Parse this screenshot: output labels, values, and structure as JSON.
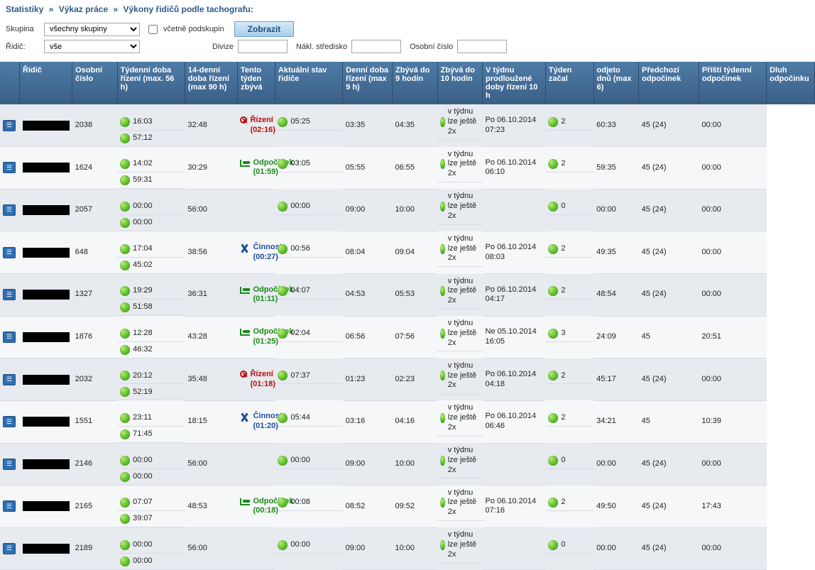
{
  "breadcrumb": [
    "Statistiky",
    "Výkaz práce",
    "Výkony řidičů podle tachografu:"
  ],
  "filters": {
    "group_label": "Skupina",
    "group_value": "všechny skupiny",
    "include_sub_label": "včetně podskupin",
    "show_label": "Zobrazit",
    "driver_label": "Řidič:",
    "driver_value": "vše",
    "division_label": "Divize",
    "division_value": "",
    "costcenter_label": "Nákl. středisko",
    "costcenter_value": "",
    "personal_label": "Osobní číslo",
    "personal_value": ""
  },
  "columns": [
    "",
    "Řidič",
    "Osobní číslo",
    "Týdenní doba řízení (max. 56 h)",
    "14-denní doba řízení (max 90 h)",
    "Tento týden zbývá",
    "Aktuální stav řidiče",
    "Denní doba řízení (max 9 h)",
    "Zbývá do 9 hodin",
    "Zbývá do 10 hodin",
    "V týdnu prodloužené doby řízení 10 h",
    "Týden začal",
    "odjeto dnů (max 6)",
    "Předchozí odpočinek",
    "Příští týdenní odpočinek",
    "Dluh odpočinku"
  ],
  "state_types": {
    "rizeni": {
      "label": "Řízení",
      "css": "state-red",
      "icon": "icon-red-x"
    },
    "odpocinek": {
      "label": "Odpočinek",
      "css": "state-green",
      "icon": "icon-bed"
    },
    "cinnost": {
      "label": "Činnost",
      "css": "state-blue",
      "icon": "icon-tools"
    }
  },
  "ext_label": "v týdnu lze ještě 2x",
  "rows": [
    {
      "num": "2038",
      "week": "16:03",
      "d14": "57:12",
      "remain": "32:48",
      "state": "rizeni",
      "state_time": "(02:16)",
      "daily": "05:25",
      "r9": "03:35",
      "r10": "04:35",
      "start": "Po 06.10.2014 07:23",
      "days": "2",
      "prev": "60:33",
      "next": "45 (24)",
      "debt": "00:00"
    },
    {
      "num": "1624",
      "week": "14:02",
      "d14": "59:31",
      "remain": "30:29",
      "state": "odpocinek",
      "state_time": "(01:59)",
      "daily": "03:05",
      "r9": "05:55",
      "r10": "06:55",
      "start": "Po 06.10.2014 06:10",
      "days": "2",
      "prev": "59:35",
      "next": "45 (24)",
      "debt": "00:00"
    },
    {
      "num": "2057",
      "week": "00:00",
      "d14": "00:00",
      "remain": "56:00",
      "state": "",
      "state_time": "",
      "daily": "00:00",
      "r9": "09:00",
      "r10": "10:00",
      "start": "",
      "days": "0",
      "prev": "00:00",
      "next": "45 (24)",
      "debt": "00:00"
    },
    {
      "num": "648",
      "week": "17:04",
      "d14": "45:02",
      "remain": "38:56",
      "state": "cinnost",
      "state_time": "(00:27)",
      "daily": "00:56",
      "r9": "08:04",
      "r10": "09:04",
      "start": "Po 06.10.2014 08:03",
      "days": "2",
      "prev": "49:35",
      "next": "45 (24)",
      "debt": "00:00"
    },
    {
      "num": "1327",
      "week": "19:29",
      "d14": "51:58",
      "remain": "36:31",
      "state": "odpocinek",
      "state_time": "(01:11)",
      "daily": "04:07",
      "r9": "04:53",
      "r10": "05:53",
      "start": "Po 06.10.2014 04:17",
      "days": "2",
      "prev": "48:54",
      "next": "45 (24)",
      "debt": "00:00"
    },
    {
      "num": "1876",
      "week": "12:28",
      "d14": "46:32",
      "remain": "43:28",
      "state": "odpocinek",
      "state_time": "(01:25)",
      "daily": "02:04",
      "r9": "06:56",
      "r10": "07:56",
      "start": "Ne 05.10.2014 16:05",
      "days": "3",
      "prev": "24:09",
      "next": "45",
      "debt": "20:51"
    },
    {
      "num": "2032",
      "week": "20:12",
      "d14": "52:19",
      "remain": "35:48",
      "state": "rizeni",
      "state_time": "(01:18)",
      "daily": "07:37",
      "r9": "01:23",
      "r10": "02:23",
      "start": "Po 06.10.2014 04:18",
      "days": "2",
      "prev": "45:17",
      "next": "45 (24)",
      "debt": "00:00"
    },
    {
      "num": "1551",
      "week": "23:11",
      "d14": "71:45",
      "remain": "18:15",
      "state": "cinnost",
      "state_time": "(01:20)",
      "daily": "05:44",
      "r9": "03:16",
      "r10": "04:16",
      "start": "Po 06.10.2014 06:46",
      "days": "2",
      "prev": "34:21",
      "next": "45",
      "debt": "10:39"
    },
    {
      "num": "2146",
      "week": "00:00",
      "d14": "00:00",
      "remain": "56:00",
      "state": "",
      "state_time": "",
      "daily": "00:00",
      "r9": "09:00",
      "r10": "10:00",
      "start": "",
      "days": "0",
      "prev": "00:00",
      "next": "45 (24)",
      "debt": "00:00"
    },
    {
      "num": "2165",
      "week": "07:07",
      "d14": "39:07",
      "remain": "48:53",
      "state": "odpocinek",
      "state_time": "(00:18)",
      "daily": "00:08",
      "r9": "08:52",
      "r10": "09:52",
      "start": "Po 06.10.2014 07:16",
      "days": "2",
      "prev": "49:50",
      "next": "45 (24)",
      "debt": "17:43"
    },
    {
      "num": "2189",
      "week": "00:00",
      "d14": "00:00",
      "remain": "56:00",
      "state": "",
      "state_time": "",
      "daily": "00:00",
      "r9": "09:00",
      "r10": "10:00",
      "start": "",
      "days": "0",
      "prev": "00:00",
      "next": "45 (24)",
      "debt": "00:00"
    }
  ],
  "colors": {
    "header_bg_from": "#4e7ba7",
    "header_bg_to": "#3a5f86",
    "row_odd": "#e7eaef",
    "row_even": "#f6f7f9",
    "green": "#5fbf2d",
    "red": "#c20a0a",
    "blue": "#1c4fa0",
    "breadcrumb": "#2b5b89"
  }
}
